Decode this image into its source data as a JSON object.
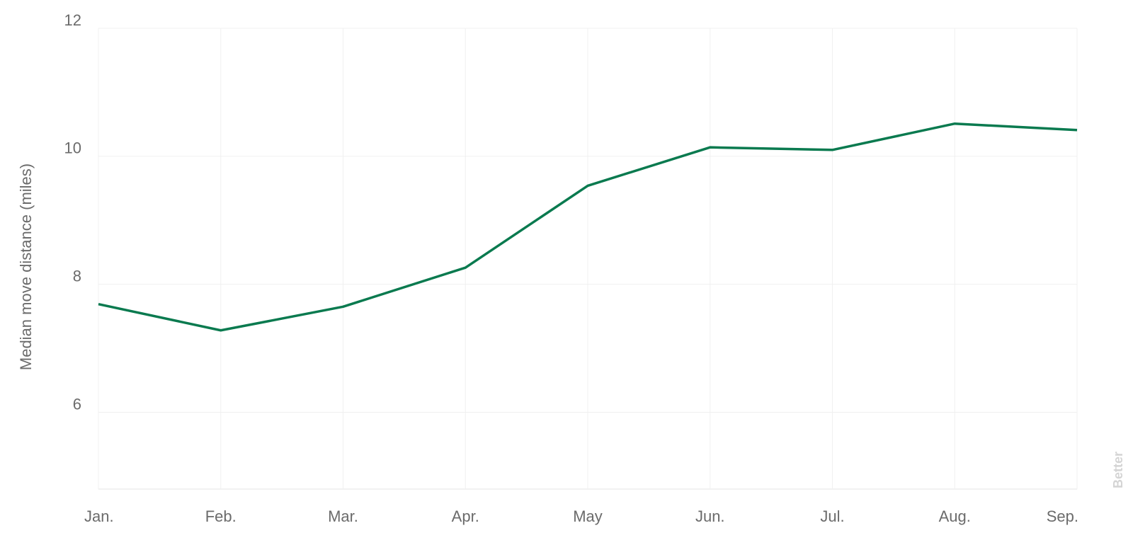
{
  "chart_data": {
    "type": "line",
    "y_label": "Median move distance (miles)",
    "watermark": "Better",
    "categories": [
      "Jan.",
      "Feb.",
      "Mar.",
      "Apr.",
      "May",
      "Jun.",
      "Jul.",
      "Aug.",
      "Sep."
    ],
    "series": [
      {
        "name": "Median move distance",
        "color": "#0a7a4f",
        "values": [
          7.69,
          7.28,
          7.65,
          8.26,
          9.54,
          10.14,
          10.1,
          10.51,
          10.41
        ]
      }
    ],
    "ylim": [
      4.8,
      12
    ],
    "yticks": [
      6,
      8,
      10,
      12
    ],
    "grid": true
  }
}
